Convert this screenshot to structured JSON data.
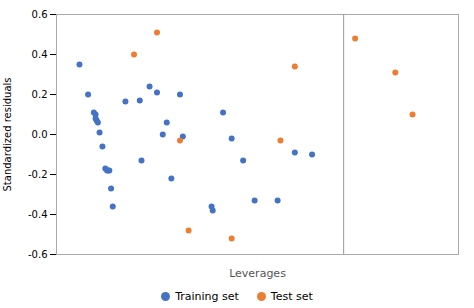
{
  "chart_data": {
    "type": "scatter",
    "xlabel": "Leverages",
    "ylabel": "Standardized residuals",
    "series": [
      {
        "name": "Training set",
        "color": "#4472C4",
        "marker": "circle",
        "x": [
          0.04,
          0.055,
          0.065,
          0.068,
          0.068,
          0.07,
          0.072,
          0.075,
          0.08,
          0.085,
          0.088,
          0.09,
          0.092,
          0.095,
          0.098,
          0.12,
          0.145,
          0.148,
          0.162,
          0.175,
          0.185,
          0.192,
          0.2,
          0.215,
          0.22,
          0.27,
          0.272,
          0.29,
          0.305,
          0.325,
          0.345,
          0.385,
          0.415,
          0.445
        ],
        "values": [
          0.35,
          0.2,
          0.11,
          0.1,
          0.08,
          0.07,
          0.06,
          0.01,
          -0.06,
          -0.17,
          -0.18,
          -0.18,
          -0.18,
          -0.27,
          -0.36,
          0.165,
          0.17,
          -0.13,
          0.24,
          0.21,
          0.0,
          0.06,
          -0.22,
          0.2,
          -0.01,
          -0.36,
          -0.38,
          0.11,
          -0.02,
          -0.13,
          -0.33,
          -0.33,
          -0.09,
          -0.1
        ]
      },
      {
        "name": "Test set",
        "color": "#ED7D31",
        "marker": "circle",
        "x": [
          0.135,
          0.175,
          0.215,
          0.23,
          0.305,
          0.39,
          0.415,
          0.52,
          0.59,
          0.62
        ],
        "values": [
          0.4,
          0.51,
          -0.03,
          -0.48,
          -0.52,
          -0.03,
          0.34,
          0.48,
          0.31,
          0.1
        ]
      }
    ],
    "vline": {
      "value": 0.5,
      "color": "#999999"
    },
    "xlim": [
      0.0,
      0.7
    ],
    "ylim": [
      -0.6,
      0.6
    ],
    "yticks": [
      -0.6,
      -0.4,
      -0.2,
      {
        "value": 0,
        "label": "0.0"
      },
      0.2,
      0.4,
      0.6
    ],
    "tick_labels": "y",
    "grid": false,
    "legend": "bottom"
  }
}
